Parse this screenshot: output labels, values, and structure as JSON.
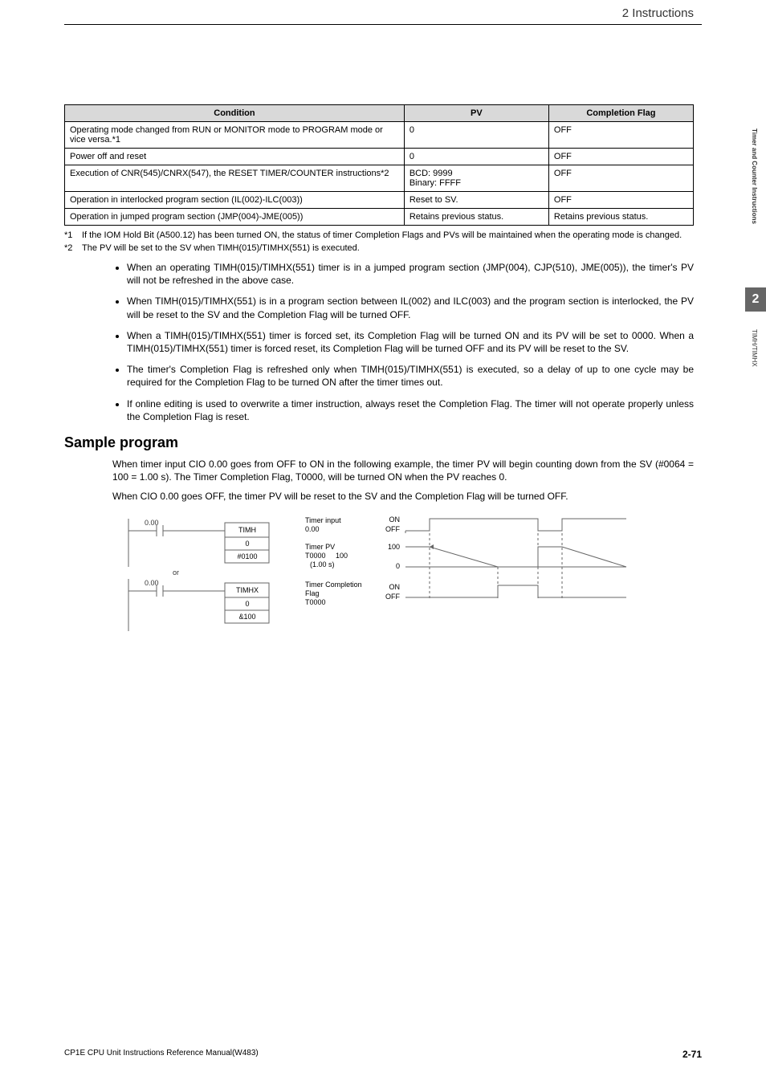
{
  "header": {
    "breadcrumb": "2  Instructions"
  },
  "sidebar": {
    "vertical_label_1": "Timer and Counter Instructions",
    "chapter_number": "2",
    "vertical_label_2": "TIMH/TIMHX"
  },
  "table": {
    "headers": [
      "Condition",
      "PV",
      "Completion Flag"
    ],
    "col_widths": [
      "54%",
      "23%",
      "23%"
    ],
    "header_bg": "#d9d9d9",
    "rows": [
      [
        "Operating mode changed from RUN or MONITOR mode to PROGRAM mode or vice versa.*1",
        "0",
        "OFF"
      ],
      [
        "Power off and reset",
        "0",
        "OFF"
      ],
      [
        "Execution of CNR(545)/CNRX(547), the RESET TIMER/COUNTER instructions*2",
        "BCD: 9999\nBinary: FFFF",
        "OFF"
      ],
      [
        "Operation in interlocked program section (IL(002)-ILC(003))",
        "Reset to SV.",
        "OFF"
      ],
      [
        "Operation in jumped program section (JMP(004)-JME(005))",
        "Retains previous status.",
        "Retains previous status."
      ]
    ]
  },
  "footnotes": [
    {
      "mark": "*1",
      "text": "If the IOM Hold Bit (A500.12) has been turned ON, the status of timer Completion Flags and PVs will be maintained when the operating mode is changed."
    },
    {
      "mark": "*2",
      "text": "The PV will be set to the SV when TIMH(015)/TIMHX(551) is executed."
    }
  ],
  "bullets": [
    "When an operating TIMH(015)/TIMHX(551) timer is in a jumped program section (JMP(004), CJP(510), JME(005)), the timer's PV will not be refreshed in the above case.",
    "When TIMH(015)/TIMHX(551) is in a program section between IL(002) and ILC(003) and the program section is interlocked, the PV will be reset to the SV and the Completion Flag will be turned OFF.",
    "When a TIMH(015)/TIMHX(551) timer is forced set, its Completion Flag will be turned ON and its PV will be set to 0000. When a TIMH(015)/TIMHX(551) timer is forced reset, its Completion Flag will be turned OFF and its PV will be reset to the SV.",
    "The timer's Completion Flag is refreshed only when TIMH(015)/TIMHX(551) is executed, so a delay of up to one cycle may be required for the Completion Flag to be turned ON after the timer times out.",
    "If online editing is used to overwrite a timer instruction, always reset the Completion Flag. The timer will not operate properly unless the Completion Flag is reset."
  ],
  "sample": {
    "title": "Sample program",
    "para1": "When timer input CIO 0.00 goes from OFF to ON in the following example, the timer PV will begin counting down from the SV (#0064 = 100 = 1.00 s). The Timer Completion Flag, T0000, will be turned ON when the PV reaches 0.",
    "para2": "When CIO 0.00 goes OFF, the timer PV will be reset to the SV and the Completion Flag will be turned OFF."
  },
  "diagram": {
    "ladder1": {
      "addr": "0.00",
      "inst": "TIMH",
      "op1": "0",
      "op2": "#0100"
    },
    "or_label": "or",
    "ladder2": {
      "addr": "0.00",
      "inst": "TIMHX",
      "op1": "0",
      "op2": "&100"
    },
    "labels": {
      "timer_input": "Timer input",
      "timer_input_addr": "0.00",
      "timer_pv": "Timer PV",
      "timer_pv_addr": "T0000",
      "timer_pv_val": "100",
      "timer_pv_time": "(1.00 s)",
      "completion": "Timer Completion Flag",
      "completion_addr": "T0000"
    },
    "timing": {
      "on": "ON",
      "off": "OFF",
      "v100": "100",
      "v0": "0"
    }
  },
  "footer": {
    "left": "CP1E CPU Unit Instructions Reference Manual(W483)",
    "right": "2-71"
  },
  "colors": {
    "text": "#000000",
    "header_bg": "#d9d9d9",
    "sidebar_bg": "#666666",
    "line": "#666666"
  }
}
